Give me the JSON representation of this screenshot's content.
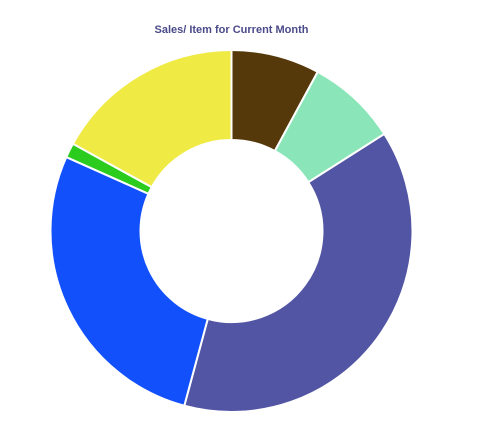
{
  "chart_data": {
    "type": "pie",
    "title": "Sales/ Item for Current Month",
    "title_color": "#4a4a8a",
    "donut": true,
    "legend": "none",
    "slices": [
      {
        "value": 7.9,
        "color": "#55390a"
      },
      {
        "value": 8.1,
        "color": "#8ae6b8"
      },
      {
        "value": 38.2,
        "color": "#5255a3"
      },
      {
        "value": 27.5,
        "color": "#1150fa"
      },
      {
        "value": 1.3,
        "color": "#2bcc1e"
      },
      {
        "value": 17.0,
        "color": "#f0ea44"
      }
    ]
  }
}
